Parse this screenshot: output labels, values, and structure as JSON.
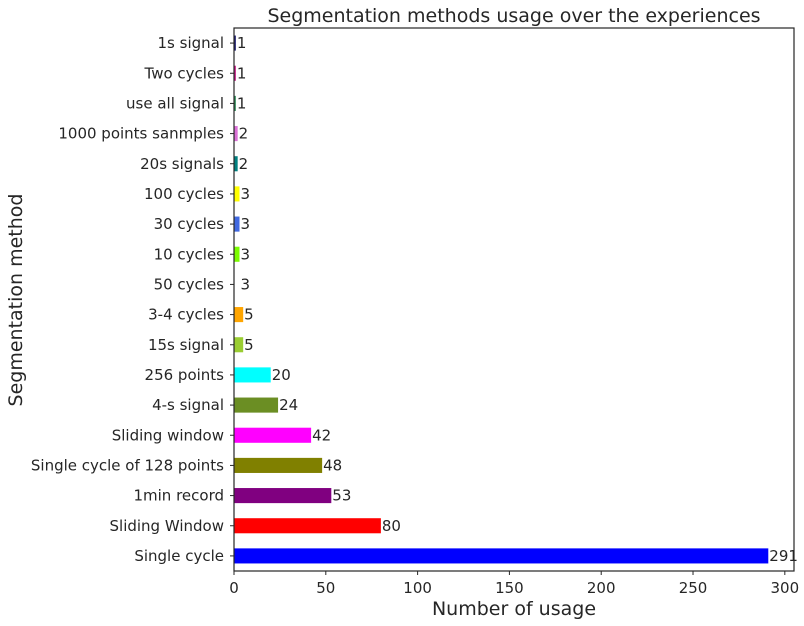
{
  "chart_data": {
    "type": "bar",
    "orientation": "horizontal",
    "title": "Segmentation methods usage over the experiences",
    "xlabel": "Number of usage",
    "ylabel": "Segmentation method",
    "xlim": [
      0,
      305
    ],
    "xticks": [
      0,
      50,
      100,
      150,
      200,
      250,
      300
    ],
    "grid": false,
    "categories": [
      "Single cycle",
      "Sliding Window",
      "1min record",
      "Single cycle of 128 points",
      "Sliding window",
      "4-s signal",
      "256 points",
      "15s signal",
      "3-4 cycles",
      "50 cycles",
      "10 cycles",
      "30 cycles",
      "100 cycles",
      "20s signals",
      "1000 points sanmples",
      "use all signal",
      "Two cycles",
      "1s signal"
    ],
    "values": [
      291,
      80,
      53,
      48,
      42,
      24,
      20,
      5,
      5,
      3,
      3,
      3,
      3,
      2,
      2,
      1,
      1,
      1
    ],
    "colors": [
      "#0000ff",
      "#ff0000",
      "#800080",
      "#808000",
      "#ff00ff",
      "#6b8e23",
      "#00ffff",
      "#9acd32",
      "#ffa500",
      "#ffffff",
      "#7cfc00",
      "#4169e1",
      "#ffff00",
      "#008080",
      "#da70d6",
      "#2e8b57",
      "#c71585",
      "#191970"
    ]
  }
}
